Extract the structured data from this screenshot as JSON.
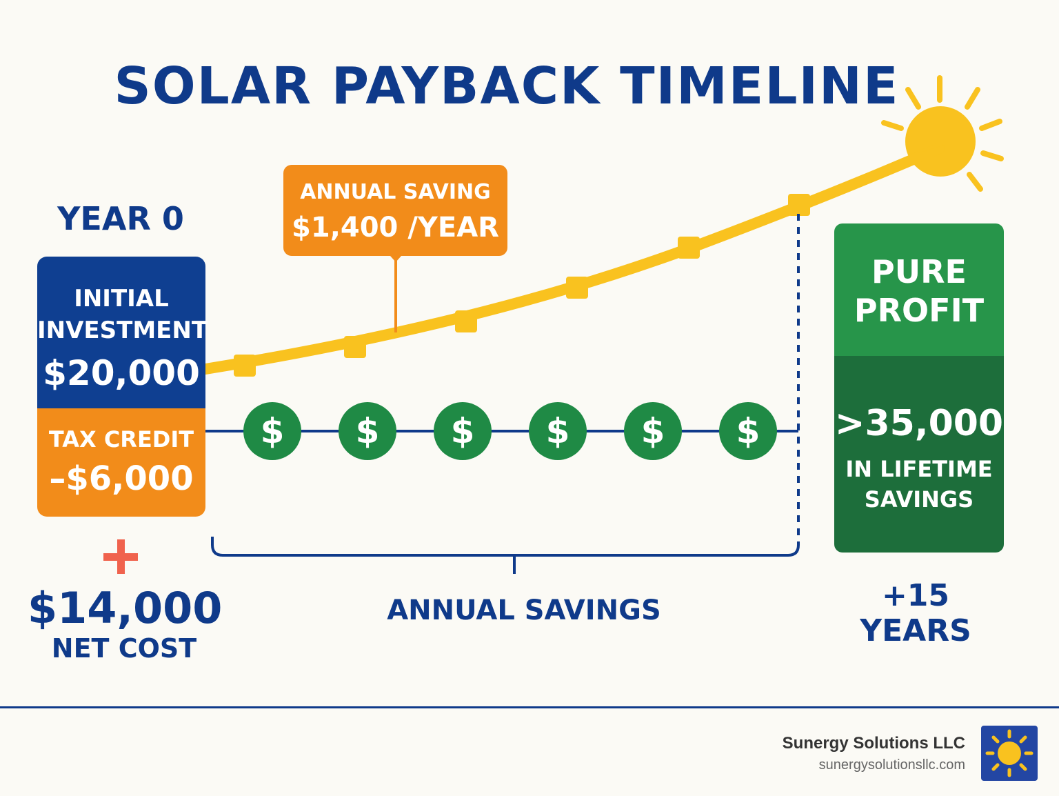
{
  "title": "SOLAR PAYBACK TIMELINE",
  "start": {
    "year_label": "YEAR 0",
    "investment_label": "INITIAL INVESTMENT",
    "investment_value": "$20,000",
    "tax_credit_label": "TAX CREDIT",
    "tax_credit_value": "–$6,000",
    "net_value": "$14,000",
    "net_label": "NET COST"
  },
  "callout": {
    "label": "ANNUAL SAVING",
    "value": "$1,400 /YEAR"
  },
  "savings_bracket_label": "ANNUAL SAVINGS",
  "coins": [
    {
      "symbol": "$"
    },
    {
      "symbol": "$"
    },
    {
      "symbol": "$"
    },
    {
      "symbol": "$"
    },
    {
      "symbol": "$"
    },
    {
      "symbol": "$"
    }
  ],
  "end": {
    "profit_label": "PURE PROFIT",
    "lifetime_value": ">35,000",
    "lifetime_label": "IN LIFETIME SAVINGS",
    "years_label": "+15 YEARS"
  },
  "footer": {
    "company": "Sunergy Solutions LLC",
    "website": "sunergysolutionsllc.com",
    "logo_icon": "sun-logo-icon"
  },
  "icons": {
    "sun": "sun-icon",
    "plus": "plus-icon",
    "coin": "dollar-coin-icon"
  },
  "colors": {
    "navy": "#0f3a8a",
    "orange": "#f28c1a",
    "yellow": "#f9c21f",
    "green": "#27954a",
    "dark_green": "#1d6e3b",
    "coin_green": "#1f8a45",
    "plus_red": "#f0624d"
  }
}
